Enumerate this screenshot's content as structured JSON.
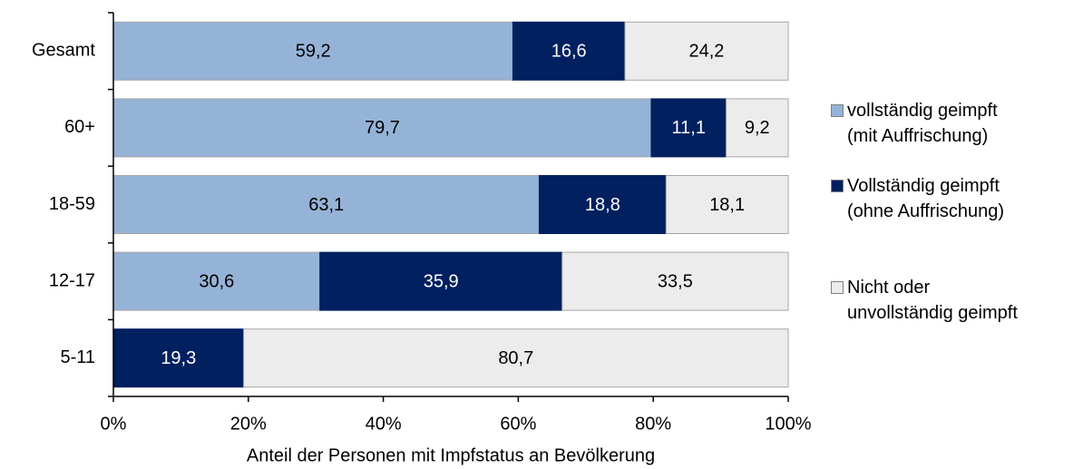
{
  "chart_data": {
    "type": "stacked_barh",
    "x_label": "Anteil der Personen mit Impfstatus an Bevölkerung",
    "categories": [
      "Gesamt",
      "60+",
      "18-59",
      "12-17",
      "5-11"
    ],
    "series": [
      {
        "name": "vollständig geimpft\n(mit Auffrischung)",
        "color": "#95b3d7",
        "values": [
          59.2,
          79.7,
          63.1,
          30.6,
          null
        ],
        "value_labels": [
          "59,2",
          "79,7",
          "63,1",
          "30,6",
          null
        ]
      },
      {
        "name": "Vollständig geimpft\n(ohne Auffrischung)",
        "color": "#002060",
        "values": [
          16.6,
          11.1,
          18.8,
          35.9,
          19.3
        ],
        "value_labels": [
          "16,6",
          "11,1",
          "18,8",
          "35,9",
          "19,3"
        ]
      },
      {
        "name": "Nicht oder\nunvollständig geimpft",
        "color": "#ececec",
        "values": [
          24.2,
          9.2,
          18.1,
          33.5,
          80.7
        ],
        "value_labels": [
          "24,2",
          "9,2",
          "18,1",
          "33,5",
          "80,7"
        ]
      }
    ],
    "xlim": [
      0,
      100
    ],
    "xticks": [
      {
        "value": 0,
        "label": "0%"
      },
      {
        "value": 20,
        "label": "20%"
      },
      {
        "value": 40,
        "label": "40%"
      },
      {
        "value": 60,
        "label": "60%"
      },
      {
        "value": 80,
        "label": "80%"
      },
      {
        "value": 100,
        "label": "100%"
      }
    ],
    "legend": "right",
    "grid": false
  }
}
